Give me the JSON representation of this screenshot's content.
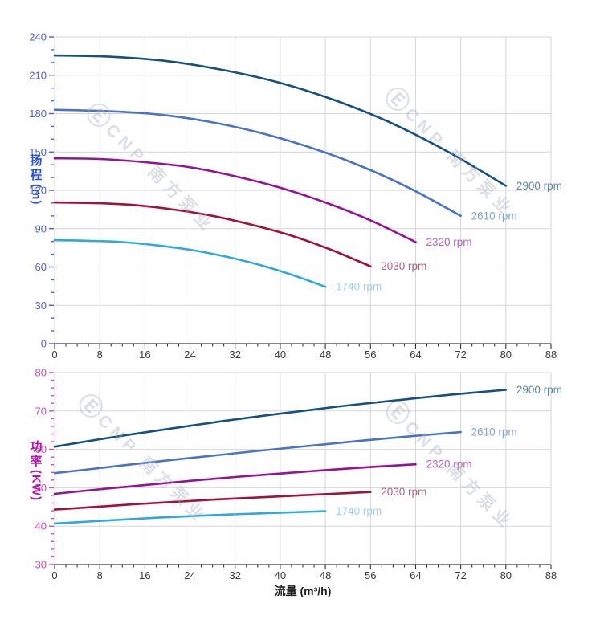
{
  "watermark": {
    "logo": "Ⓔ",
    "text": "CNP 南方泵业"
  },
  "colors": {
    "grid": "#d6d6d6",
    "axis_line": "#3c3c3c",
    "xtick_label": "#3a3a3a",
    "background": "#ffffff"
  },
  "chart_data": [
    {
      "type": "line",
      "title": "",
      "ylabel": "扬程",
      "ylabel_unit": "(m)",
      "title_color": "#2b50d4",
      "ytick_color": "#4d5ed6",
      "xlabel": "",
      "xlim": [
        0,
        88
      ],
      "ylim": [
        0,
        240
      ],
      "xticks": [
        0,
        8,
        16,
        24,
        32,
        40,
        48,
        56,
        64,
        72,
        80,
        88
      ],
      "x_minor_step": 2,
      "yticks": [
        0,
        30,
        60,
        90,
        120,
        150,
        180,
        210,
        240
      ],
      "y_minor_step": 10,
      "grid": true,
      "legend_position": "line-end-labels",
      "series": [
        {
          "name": "2900 rpm",
          "color": "#15507e",
          "label_color": "#5e87b2",
          "points": [
            [
              0,
              225.5
            ],
            [
              10,
              224.5
            ],
            [
              20,
              221
            ],
            [
              30,
              214
            ],
            [
              40,
              204
            ],
            [
              50,
              190
            ],
            [
              60,
              172
            ],
            [
              70,
              149.5
            ],
            [
              80,
              123.5
            ]
          ]
        },
        {
          "name": "2610 rpm",
          "color": "#4a73c4",
          "label_color": "#84a2da",
          "points": [
            [
              0,
              183
            ],
            [
              9,
              182
            ],
            [
              18,
              179.5
            ],
            [
              27,
              174
            ],
            [
              36,
              165.5
            ],
            [
              45,
              154
            ],
            [
              54,
              139.5
            ],
            [
              63,
              121.5
            ],
            [
              72,
              100
            ]
          ]
        },
        {
          "name": "2320 rpm",
          "color": "#951293",
          "label_color": "#b863bd",
          "points": [
            [
              0,
              145
            ],
            [
              8,
              144.5
            ],
            [
              16,
              142
            ],
            [
              24,
              138
            ],
            [
              32,
              131
            ],
            [
              40,
              122
            ],
            [
              48,
              110.5
            ],
            [
              56,
              96.5
            ],
            [
              64,
              79.5
            ]
          ]
        },
        {
          "name": "2030 rpm",
          "color": "#a01238",
          "label_color": "#b5607f",
          "points": [
            [
              0,
              110.5
            ],
            [
              7,
              110
            ],
            [
              14,
              108.5
            ],
            [
              21,
              105
            ],
            [
              28,
              100
            ],
            [
              35,
              93
            ],
            [
              42,
              84.5
            ],
            [
              49,
              73.5
            ],
            [
              56,
              60.5
            ]
          ]
        },
        {
          "name": "1740 rpm",
          "color": "#2fa8dd",
          "label_color": "#9cd2f2",
          "points": [
            [
              0,
              81
            ],
            [
              6,
              80.5
            ],
            [
              12,
              79.5
            ],
            [
              18,
              77
            ],
            [
              24,
              73.5
            ],
            [
              30,
              68.5
            ],
            [
              36,
              62
            ],
            [
              42,
              54
            ],
            [
              48,
              44.5
            ]
          ]
        }
      ]
    },
    {
      "type": "line",
      "title": "",
      "ylabel": "功率",
      "ylabel_unit": "(KW)",
      "title_color": "#b517a8",
      "ytick_color": "#cf4fa5",
      "xlabel": "流量 (m³/h)",
      "xlim": [
        0,
        88
      ],
      "ylim": [
        30,
        80
      ],
      "xticks": [
        0,
        8,
        16,
        24,
        32,
        40,
        48,
        56,
        64,
        72,
        80,
        88
      ],
      "x_minor_step": 2,
      "yticks": [
        30,
        40,
        50,
        60,
        70,
        80
      ],
      "y_minor_step": 2,
      "grid": true,
      "legend_position": "line-end-labels",
      "series": [
        {
          "name": "2900 rpm",
          "color": "#15507e",
          "label_color": "#5e87b2",
          "points": [
            [
              0,
              60.7
            ],
            [
              10,
              63.1
            ],
            [
              20,
              65.3
            ],
            [
              30,
              67.4
            ],
            [
              40,
              69.3
            ],
            [
              50,
              71.1
            ],
            [
              60,
              72.7
            ],
            [
              70,
              74.2
            ],
            [
              80,
              75.5
            ]
          ]
        },
        {
          "name": "2610 rpm",
          "color": "#4a73c4",
          "label_color": "#84a2da",
          "points": [
            [
              0,
              53.8
            ],
            [
              9,
              55.3
            ],
            [
              18,
              56.8
            ],
            [
              27,
              58.2
            ],
            [
              36,
              59.6
            ],
            [
              45,
              60.9
            ],
            [
              54,
              62.2
            ],
            [
              63,
              63.4
            ],
            [
              72,
              64.5
            ]
          ]
        },
        {
          "name": "2320 rpm",
          "color": "#951293",
          "label_color": "#b863bd",
          "points": [
            [
              0,
              48.4
            ],
            [
              8,
              49.6
            ],
            [
              16,
              50.7
            ],
            [
              24,
              51.8
            ],
            [
              32,
              52.8
            ],
            [
              40,
              53.7
            ],
            [
              48,
              54.6
            ],
            [
              56,
              55.4
            ],
            [
              64,
              56.1
            ]
          ]
        },
        {
          "name": "2030 rpm",
          "color": "#a01238",
          "label_color": "#b5607f",
          "points": [
            [
              0,
              44.3
            ],
            [
              7,
              45
            ],
            [
              14,
              45.7
            ],
            [
              21,
              46.3
            ],
            [
              28,
              46.9
            ],
            [
              35,
              47.4
            ],
            [
              42,
              47.9
            ],
            [
              49,
              48.4
            ],
            [
              56,
              48.9
            ]
          ]
        },
        {
          "name": "1740 rpm",
          "color": "#2fa8dd",
          "label_color": "#9cd2f2",
          "points": [
            [
              0,
              40.7
            ],
            [
              6,
              41.2
            ],
            [
              12,
              41.7
            ],
            [
              18,
              42.2
            ],
            [
              24,
              42.6
            ],
            [
              30,
              43
            ],
            [
              36,
              43.3
            ],
            [
              42,
              43.6
            ],
            [
              48,
              43.9
            ]
          ]
        }
      ]
    }
  ]
}
